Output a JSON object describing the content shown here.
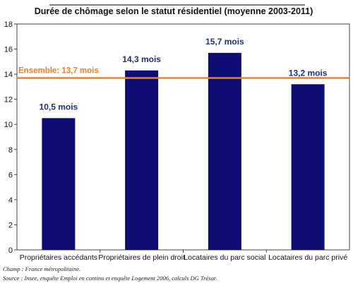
{
  "chart_data": {
    "type": "bar",
    "title": "Durée de chômage selon le statut résidentiel (moyenne 2003-2011)",
    "categories": [
      "Propriétaires accédants",
      "Propriétaires de plein droit",
      "Locataires  du parc social",
      "Locataires  du parc privé"
    ],
    "values": [
      10.5,
      14.3,
      15.7,
      13.2
    ],
    "data_labels": [
      "10,5 mois",
      "14,3 mois",
      "15,7 mois",
      "13,2 mois"
    ],
    "ylim": [
      0,
      18
    ],
    "yticks": [
      0,
      2,
      4,
      6,
      8,
      10,
      12,
      14,
      16,
      18
    ],
    "reference_line": {
      "value": 13.7,
      "label": "Ensemble: 13,7 mois",
      "color": "#f07d2a"
    },
    "bar_color": "#0d0d73",
    "label_color": "#1f2f7a",
    "grid": false,
    "legend": "none"
  },
  "notes": {
    "field": "Champ : France métropolitaine.",
    "source": "Source : Insee, enquête Emploi en continu et enquête Logement 2006, calculs DG Trésor."
  }
}
